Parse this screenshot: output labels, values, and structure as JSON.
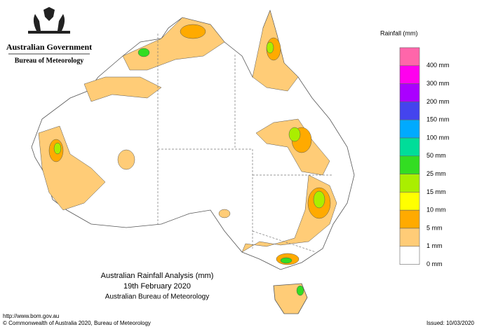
{
  "header": {
    "government": "Australian Government",
    "bureau": "Bureau of Meteorology"
  },
  "legend": {
    "title": "Rainfall (mm)",
    "colors": [
      "#ff66aa",
      "#ff00ee",
      "#aa00ff",
      "#4444ee",
      "#00aaff",
      "#00dd99",
      "#33dd22",
      "#aaee00",
      "#ffff00",
      "#ffaa00",
      "#ffcc77",
      "#ffffff"
    ],
    "labels": [
      "400 mm",
      "300 mm",
      "200 mm",
      "150 mm",
      "100 mm",
      "50 mm",
      "25 mm",
      "15 mm",
      "10 mm",
      "5 mm",
      "1 mm",
      "0 mm"
    ]
  },
  "title": {
    "lines": [
      "Australian Rainfall Analysis (mm)",
      "19th February 2020",
      "Australian Bureau of Meteorology"
    ]
  },
  "footer": {
    "url": "http://www.bom.gov.au",
    "copyright": "© Commonwealth of Australia 2020, Bureau of Meteorology",
    "issued": "Issued: 10/03/2020"
  }
}
